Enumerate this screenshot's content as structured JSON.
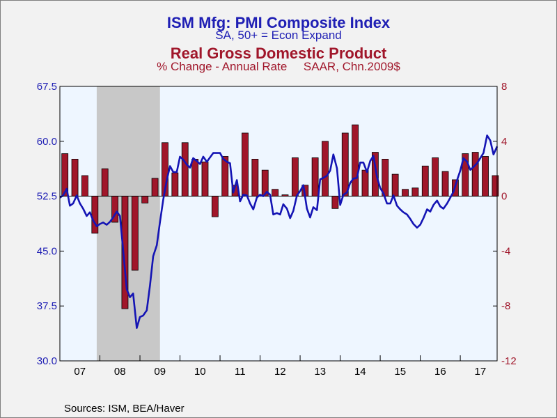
{
  "titles": {
    "line1": "ISM Mfg: PMI Composite Index",
    "line2": "SA, 50+ = Econ Expand",
    "line3": "Real Gross Domestic Product",
    "line4": "% Change - Annual Rate     SAAR, Chn.2009$"
  },
  "source": "Sources:  ISM, BEA/Haver",
  "colors": {
    "pmi_line": "#1414b4",
    "gdp_bar": "#a0162a",
    "recession": "#c8c8c8",
    "plot_bg": "#eef6ff",
    "left_axis_text": "#1f1fb4",
    "right_axis_text": "#a0162a"
  },
  "chart_data": {
    "type": "bar+line",
    "x_labels": [
      "07",
      "08",
      "09",
      "10",
      "11",
      "12",
      "13",
      "14",
      "15",
      "16",
      "17"
    ],
    "x_range": [
      2007.0,
      2017.92
    ],
    "left_axis": {
      "ylim": [
        30.0,
        67.5
      ],
      "ticks": [
        "67.5",
        "60.0",
        "52.5",
        "45.0",
        "37.5",
        "30.0"
      ]
    },
    "right_axis": {
      "ylim": [
        -12,
        8
      ],
      "ticks": [
        "8",
        "4",
        "0",
        "-4",
        "-8",
        "-12"
      ]
    },
    "recession": {
      "start": 2007.92,
      "end": 2009.5
    },
    "grid": false,
    "series": [
      {
        "name": "ISM Mfg: PMI Composite Index",
        "type": "line",
        "axis": "left",
        "x": [
          2007.0,
          2007.08,
          2007.17,
          2007.25,
          2007.33,
          2007.42,
          2007.5,
          2007.58,
          2007.67,
          2007.75,
          2007.83,
          2007.92,
          2008.0,
          2008.08,
          2008.17,
          2008.25,
          2008.33,
          2008.42,
          2008.5,
          2008.58,
          2008.67,
          2008.75,
          2008.83,
          2008.92,
          2009.0,
          2009.08,
          2009.17,
          2009.25,
          2009.33,
          2009.42,
          2009.5,
          2009.58,
          2009.67,
          2009.75,
          2009.83,
          2009.92,
          2010.0,
          2010.08,
          2010.17,
          2010.25,
          2010.33,
          2010.42,
          2010.5,
          2010.58,
          2010.67,
          2010.75,
          2010.83,
          2010.92,
          2011.0,
          2011.08,
          2011.17,
          2011.25,
          2011.33,
          2011.42,
          2011.5,
          2011.58,
          2011.67,
          2011.75,
          2011.83,
          2011.92,
          2012.0,
          2012.08,
          2012.17,
          2012.25,
          2012.33,
          2012.42,
          2012.5,
          2012.58,
          2012.67,
          2012.75,
          2012.83,
          2012.92,
          2013.0,
          2013.08,
          2013.17,
          2013.25,
          2013.33,
          2013.42,
          2013.5,
          2013.58,
          2013.67,
          2013.75,
          2013.83,
          2013.92,
          2014.0,
          2014.08,
          2014.17,
          2014.25,
          2014.33,
          2014.42,
          2014.5,
          2014.58,
          2014.67,
          2014.75,
          2014.83,
          2014.92,
          2015.0,
          2015.08,
          2015.17,
          2015.25,
          2015.33,
          2015.42,
          2015.5,
          2015.58,
          2015.67,
          2015.75,
          2015.83,
          2015.92,
          2016.0,
          2016.08,
          2016.17,
          2016.25,
          2016.33,
          2016.42,
          2016.5,
          2016.58,
          2016.67,
          2016.75,
          2016.83,
          2016.92,
          2017.0,
          2017.08,
          2017.17,
          2017.25,
          2017.33,
          2017.42,
          2017.5,
          2017.58,
          2017.67,
          2017.75,
          2017.83,
          2017.92
        ],
        "values": [
          52.3,
          52.6,
          53.5,
          51.2,
          51.5,
          52.6,
          51.5,
          50.8,
          49.8,
          50.3,
          49.2,
          48.4,
          48.7,
          48.9,
          48.6,
          49.0,
          49.6,
          50.4,
          49.8,
          45.1,
          39.8,
          38.7,
          39.2,
          34.5,
          36.0,
          36.2,
          36.9,
          40.3,
          44.3,
          45.8,
          49.0,
          52.0,
          54.7,
          56.6,
          55.8,
          55.8,
          57.9,
          57.5,
          56.8,
          56.4,
          57.7,
          57.3,
          56.9,
          57.9,
          57.2,
          57.8,
          58.4,
          58.4,
          58.4,
          57.6,
          57.2,
          57.0,
          53.0,
          54.7,
          51.8,
          52.7,
          52.6,
          51.5,
          50.7,
          52.3,
          52.7,
          52.5,
          53.1,
          52.7,
          50.0,
          50.2,
          50.0,
          51.4,
          50.8,
          49.5,
          50.5,
          52.6,
          53.2,
          54.0,
          50.8,
          49.6,
          51.0,
          50.6,
          54.8,
          55.0,
          55.3,
          56.0,
          58.2,
          56.3,
          51.3,
          52.7,
          53.0,
          54.3,
          54.9,
          55.0,
          57.1,
          57.1,
          55.8,
          57.3,
          58.0,
          55.1,
          53.6,
          52.9,
          51.5,
          51.5,
          52.6,
          51.2,
          50.7,
          50.3,
          50.0,
          49.4,
          48.7,
          48.2,
          48.6,
          49.5,
          50.7,
          50.4,
          51.3,
          51.9,
          51.1,
          50.8,
          51.5,
          52.3,
          53.1,
          54.7,
          56.0,
          57.7,
          57.2,
          56.1,
          56.5,
          57.0,
          57.7,
          58.4,
          60.8,
          60.1,
          58.2,
          59.3
        ]
      },
      {
        "name": "Real Gross Domestic Product",
        "type": "bar",
        "axis": "right",
        "x": [
          2007.125,
          2007.375,
          2007.625,
          2007.875,
          2008.125,
          2008.375,
          2008.625,
          2008.875,
          2009.125,
          2009.375,
          2009.625,
          2009.875,
          2010.125,
          2010.375,
          2010.625,
          2010.875,
          2011.125,
          2011.375,
          2011.625,
          2011.875,
          2012.125,
          2012.375,
          2012.625,
          2012.875,
          2013.125,
          2013.375,
          2013.625,
          2013.875,
          2014.125,
          2014.375,
          2014.625,
          2014.875,
          2015.125,
          2015.375,
          2015.625,
          2015.875,
          2016.125,
          2016.375,
          2016.625,
          2016.875,
          2017.125,
          2017.375,
          2017.625,
          2017.875
        ],
        "values": [
          3.1,
          2.7,
          1.5,
          -2.7,
          2.0,
          -1.9,
          -8.2,
          -5.4,
          -0.5,
          1.3,
          3.9,
          1.7,
          3.9,
          2.7,
          2.5,
          -1.5,
          2.9,
          0.8,
          4.6,
          2.7,
          1.9,
          0.5,
          0.1,
          2.8,
          0.8,
          2.8,
          4.0,
          -0.9,
          4.6,
          5.2,
          1.9,
          3.2,
          2.7,
          1.6,
          0.5,
          0.6,
          2.2,
          2.8,
          1.8,
          1.2,
          3.1,
          3.2,
          2.9,
          1.5
        ]
      }
    ]
  }
}
